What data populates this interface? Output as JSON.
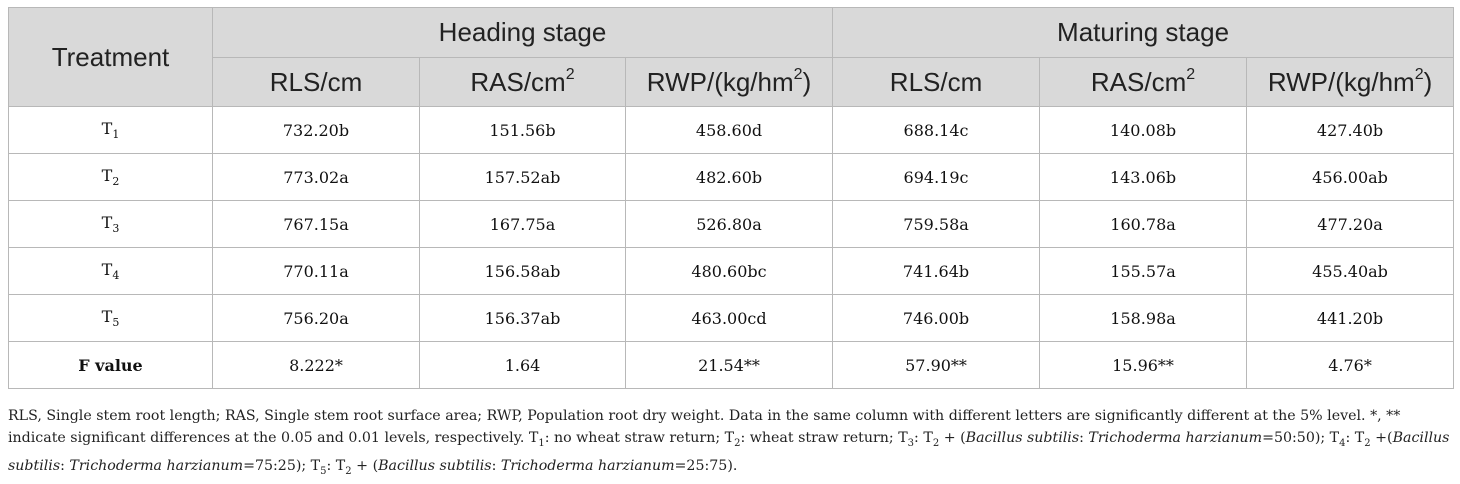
{
  "table": {
    "header": {
      "treatment": "Treatment",
      "group1": "Heading stage",
      "group2": "Maturing stage",
      "columns": [
        {
          "base": "RLS/cm",
          "sup": "",
          "tail": ""
        },
        {
          "base": "RAS/cm",
          "sup": "2",
          "tail": ""
        },
        {
          "base": "RWP/(kg/hm",
          "sup": "2",
          "tail": ")"
        },
        {
          "base": "RLS/cm",
          "sup": "",
          "tail": ""
        },
        {
          "base": "RAS/cm",
          "sup": "2",
          "tail": ""
        },
        {
          "base": "RWP/(kg/hm",
          "sup": "2",
          "tail": ")"
        }
      ]
    },
    "rows": [
      {
        "label": "T",
        "sub": "1",
        "values": [
          "732.20b",
          "151.56b",
          "458.60d",
          "688.14c",
          "140.08b",
          "427.40b"
        ]
      },
      {
        "label": "T",
        "sub": "2",
        "values": [
          "773.02a",
          "157.52ab",
          "482.60b",
          "694.19c",
          "143.06b",
          "456.00ab"
        ]
      },
      {
        "label": "T",
        "sub": "3",
        "values": [
          "767.15a",
          "167.75a",
          "526.80a",
          "759.58a",
          "160.78a",
          "477.20a"
        ]
      },
      {
        "label": "T",
        "sub": "4",
        "values": [
          "770.11a",
          "156.58ab",
          "480.60bc",
          "741.64b",
          "155.57a",
          "455.40ab"
        ]
      },
      {
        "label": "T",
        "sub": "5",
        "values": [
          "756.20a",
          "156.37ab",
          "463.00cd",
          "746.00b",
          "158.98a",
          "441.20b"
        ]
      }
    ],
    "f_row": {
      "label": "F value",
      "values": [
        "8.222*",
        "1.64",
        "21.54**",
        "57.90**",
        "15.96**",
        "4.76*"
      ]
    }
  },
  "footnote": {
    "p1": "RLS, Single stem root length; RAS, Single stem root surface area; RWP, Population root dry weight. Data in the same column with different letters are significantly different at the 5% level. *, ** indicate significant differences at the 0.05 and 0.01 levels, respectively. T",
    "s1": "1",
    "p2": ": no wheat straw return; T",
    "s2": "2",
    "p3": ": wheat straw return; T",
    "s3": "3",
    "p4": ": T",
    "s4": "2",
    "p5": " + (",
    "i1": "Bacillus subtilis",
    "p6": ": ",
    "i2": "Trichoderma harzianum",
    "p7": "=50:50); T",
    "s5": "4",
    "p8": ": T",
    "s6": "2",
    "p9": " +(",
    "i3": "Bacillus subtilis",
    "p10": ": ",
    "i4": "Trichoderma harzianum",
    "p11": "=75:25); T",
    "s7": "5",
    "p12": ": T",
    "s8": "2",
    "p13": " + (",
    "i5": "Bacillus subtilis",
    "p14": ": ",
    "i6": "Trichoderma harzianum",
    "p15": "=25:75)."
  }
}
